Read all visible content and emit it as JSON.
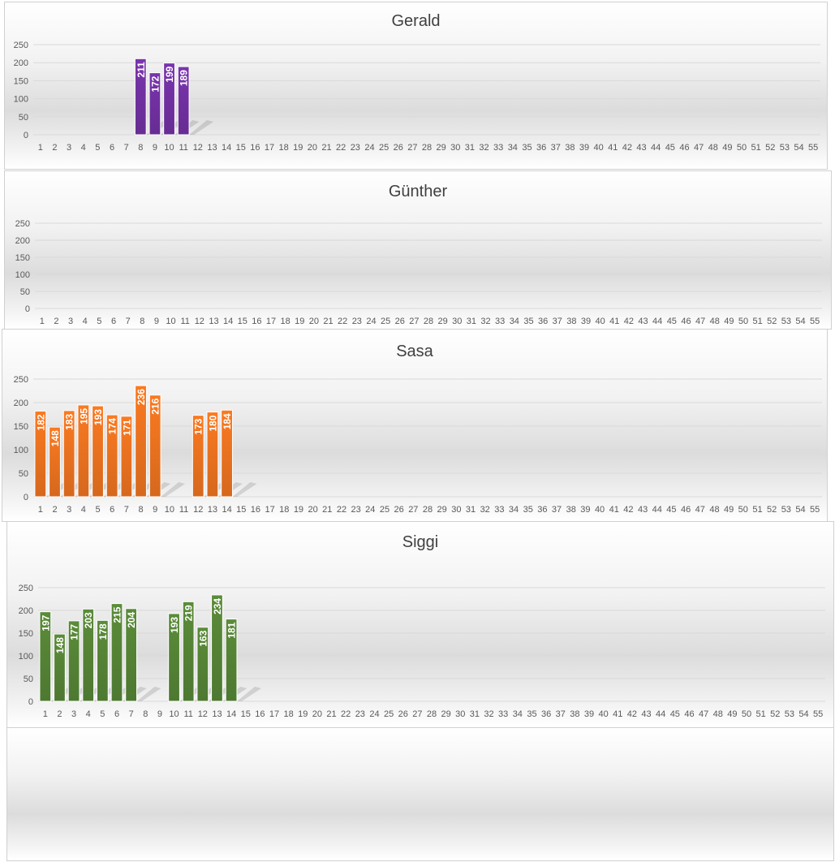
{
  "chart_data": [
    {
      "type": "bar",
      "title": "Gerald",
      "color": "#7030a0",
      "categories": [
        "1",
        "2",
        "3",
        "4",
        "5",
        "6",
        "7",
        "8",
        "9",
        "10",
        "11",
        "12",
        "13",
        "14",
        "15",
        "16",
        "17",
        "18",
        "19",
        "20",
        "21",
        "22",
        "23",
        "24",
        "25",
        "26",
        "27",
        "28",
        "29",
        "30",
        "31",
        "32",
        "33",
        "34",
        "35",
        "36",
        "37",
        "38",
        "39",
        "40",
        "41",
        "42",
        "43",
        "44",
        "45",
        "46",
        "47",
        "48",
        "49",
        "50",
        "51",
        "52",
        "53",
        "54",
        "55"
      ],
      "values": {
        "8": 211,
        "9": 172,
        "10": 199,
        "11": 189
      },
      "yticks": [
        0,
        50,
        100,
        150,
        200,
        250
      ],
      "ylim": [
        0,
        250
      ],
      "grid": true,
      "data_labels": true
    },
    {
      "type": "bar",
      "title": "Günther",
      "color": "#4472c4",
      "categories": [
        "1",
        "2",
        "3",
        "4",
        "5",
        "6",
        "7",
        "8",
        "9",
        "10",
        "11",
        "12",
        "13",
        "14",
        "15",
        "16",
        "17",
        "18",
        "19",
        "20",
        "21",
        "22",
        "23",
        "24",
        "25",
        "26",
        "27",
        "28",
        "29",
        "30",
        "31",
        "32",
        "33",
        "34",
        "35",
        "36",
        "37",
        "38",
        "39",
        "40",
        "41",
        "42",
        "43",
        "44",
        "45",
        "46",
        "47",
        "48",
        "49",
        "50",
        "51",
        "52",
        "53",
        "54",
        "55"
      ],
      "values": {},
      "yticks": [
        0,
        50,
        100,
        150,
        200,
        250
      ],
      "ylim": [
        0,
        250
      ],
      "grid": true,
      "data_labels": true
    },
    {
      "type": "bar",
      "title": "Sasa",
      "color": "#e8711f",
      "categories": [
        "1",
        "2",
        "3",
        "4",
        "5",
        "6",
        "7",
        "8",
        "9",
        "10",
        "11",
        "12",
        "13",
        "14",
        "15",
        "16",
        "17",
        "18",
        "19",
        "20",
        "21",
        "22",
        "23",
        "24",
        "25",
        "26",
        "27",
        "28",
        "29",
        "30",
        "31",
        "32",
        "33",
        "34",
        "35",
        "36",
        "37",
        "38",
        "39",
        "40",
        "41",
        "42",
        "43",
        "44",
        "45",
        "46",
        "47",
        "48",
        "49",
        "50",
        "51",
        "52",
        "53",
        "54",
        "55"
      ],
      "values": {
        "1": 182,
        "2": 148,
        "3": 183,
        "4": 195,
        "5": 193,
        "6": 174,
        "7": 171,
        "8": 236,
        "9": 216,
        "12": 173,
        "13": 180,
        "14": 184
      },
      "yticks": [
        0,
        50,
        100,
        150,
        200,
        250
      ],
      "ylim": [
        0,
        250
      ],
      "grid": true,
      "data_labels": true
    },
    {
      "type": "bar",
      "title": "Siggi",
      "color": "#548235",
      "categories": [
        "1",
        "2",
        "3",
        "4",
        "5",
        "6",
        "7",
        "8",
        "9",
        "10",
        "11",
        "12",
        "13",
        "14",
        "15",
        "16",
        "17",
        "18",
        "19",
        "20",
        "21",
        "22",
        "23",
        "24",
        "25",
        "26",
        "27",
        "28",
        "29",
        "30",
        "31",
        "32",
        "33",
        "34",
        "35",
        "36",
        "37",
        "38",
        "39",
        "40",
        "41",
        "42",
        "43",
        "44",
        "45",
        "46",
        "47",
        "48",
        "49",
        "50",
        "51",
        "52",
        "53",
        "54",
        "55"
      ],
      "values": {
        "1": 197,
        "2": 148,
        "3": 177,
        "4": 203,
        "5": 178,
        "6": 215,
        "7": 204,
        "10": 193,
        "11": 219,
        "12": 163,
        "13": 234,
        "14": 181
      },
      "yticks": [
        0,
        50,
        100,
        150,
        200,
        250
      ],
      "ylim": [
        0,
        250
      ],
      "grid": true,
      "data_labels": true
    }
  ]
}
